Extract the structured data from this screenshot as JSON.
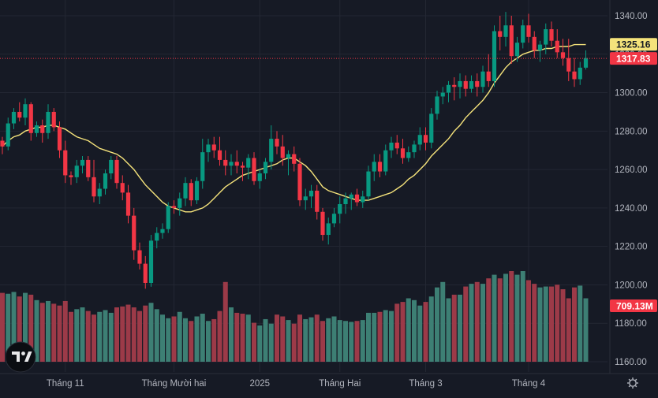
{
  "chart_data": {
    "type": "candlestick",
    "title": "",
    "price_axis": {
      "ticks": [
        1340,
        1320,
        1300,
        1280,
        1260,
        1240,
        1220,
        1200,
        1180,
        1160
      ],
      "tick_labels": [
        "1340.00",
        "1320.00",
        "1300.00",
        "1280.00",
        "1260.00",
        "1240.00",
        "1220.00",
        "1200.00",
        "1180.00",
        "1160.00"
      ],
      "range": [
        1155,
        1345
      ]
    },
    "time_axis": {
      "labels": [
        "Tháng 11",
        "Tháng Mười hai",
        "2025",
        "Tháng Hai",
        "Tháng 3",
        "Tháng 4"
      ],
      "label_indices": [
        11,
        30,
        45,
        59,
        74,
        92
      ]
    },
    "ma": {
      "label": "1325.16",
      "value": 1325.16,
      "color": "#f5e37b"
    },
    "last_price": {
      "label": "1317.83",
      "value": 1317.83,
      "color": "#f23645"
    },
    "volume": {
      "label": "709.13M",
      "value": 709.13,
      "color": "#f23645"
    },
    "colors": {
      "up": "#089981",
      "down": "#f23645",
      "up_vol": "#3d7f74",
      "down_vol": "#9c3a48",
      "background": "#161a25",
      "grid": "#232733",
      "text": "#b2b5be"
    },
    "candles": [
      [
        1275,
        1277,
        1268,
        1272
      ],
      [
        1272,
        1287,
        1270,
        1284
      ],
      [
        1284,
        1292,
        1281,
        1290
      ],
      [
        1290,
        1295,
        1285,
        1287
      ],
      [
        1287,
        1297,
        1283,
        1294
      ],
      [
        1294,
        1295,
        1275,
        1279
      ],
      [
        1279,
        1285,
        1277,
        1283
      ],
      [
        1283,
        1286,
        1274,
        1279
      ],
      [
        1279,
        1294,
        1276,
        1290
      ],
      [
        1290,
        1292,
        1280,
        1282
      ],
      [
        1282,
        1285,
        1266,
        1270
      ],
      [
        1270,
        1275,
        1253,
        1257
      ],
      [
        1257,
        1259,
        1252,
        1256
      ],
      [
        1256,
        1265,
        1253,
        1262
      ],
      [
        1262,
        1267,
        1258,
        1265
      ],
      [
        1265,
        1267,
        1254,
        1256
      ],
      [
        1256,
        1265,
        1243,
        1246
      ],
      [
        1246,
        1253,
        1242,
        1250
      ],
      [
        1250,
        1260,
        1247,
        1258
      ],
      [
        1258,
        1267,
        1255,
        1265
      ],
      [
        1265,
        1267,
        1250,
        1253
      ],
      [
        1253,
        1257,
        1244,
        1248
      ],
      [
        1248,
        1252,
        1232,
        1236
      ],
      [
        1236,
        1240,
        1213,
        1218
      ],
      [
        1218,
        1222,
        1208,
        1211
      ],
      [
        1211,
        1215,
        1198,
        1201
      ],
      [
        1201,
        1226,
        1199,
        1223
      ],
      [
        1223,
        1230,
        1219,
        1227
      ],
      [
        1227,
        1232,
        1224,
        1229
      ],
      [
        1229,
        1243,
        1227,
        1241
      ],
      [
        1241,
        1244,
        1237,
        1240
      ],
      [
        1240,
        1248,
        1236,
        1245
      ],
      [
        1245,
        1256,
        1241,
        1253
      ],
      [
        1253,
        1255,
        1241,
        1244
      ],
      [
        1244,
        1256,
        1242,
        1254
      ],
      [
        1254,
        1276,
        1250,
        1269
      ],
      [
        1269,
        1276,
        1264,
        1273
      ],
      [
        1273,
        1277,
        1266,
        1270
      ],
      [
        1270,
        1277,
        1262,
        1265
      ],
      [
        1265,
        1270,
        1257,
        1262
      ],
      [
        1262,
        1268,
        1257,
        1264
      ],
      [
        1264,
        1270,
        1258,
        1262
      ],
      [
        1262,
        1264,
        1254,
        1261
      ],
      [
        1261,
        1268,
        1255,
        1266
      ],
      [
        1266,
        1269,
        1252,
        1254
      ],
      [
        1254,
        1260,
        1250,
        1258
      ],
      [
        1258,
        1266,
        1255,
        1264
      ],
      [
        1264,
        1283,
        1260,
        1276
      ],
      [
        1276,
        1280,
        1268,
        1272
      ],
      [
        1272,
        1278,
        1262,
        1266
      ],
      [
        1266,
        1270,
        1257,
        1268
      ],
      [
        1268,
        1272,
        1259,
        1263
      ],
      [
        1263,
        1266,
        1241,
        1244
      ],
      [
        1244,
        1250,
        1239,
        1246
      ],
      [
        1246,
        1252,
        1240,
        1249
      ],
      [
        1249,
        1252,
        1234,
        1238
      ],
      [
        1238,
        1240,
        1223,
        1226
      ],
      [
        1226,
        1235,
        1221,
        1232
      ],
      [
        1232,
        1240,
        1230,
        1237
      ],
      [
        1237,
        1246,
        1232,
        1242
      ],
      [
        1242,
        1248,
        1237,
        1245
      ],
      [
        1245,
        1248,
        1239,
        1247
      ],
      [
        1247,
        1250,
        1241,
        1243
      ],
      [
        1243,
        1249,
        1240,
        1246
      ],
      [
        1246,
        1262,
        1244,
        1259
      ],
      [
        1259,
        1268,
        1254,
        1264
      ],
      [
        1264,
        1268,
        1256,
        1259
      ],
      [
        1259,
        1273,
        1257,
        1270
      ],
      [
        1270,
        1277,
        1266,
        1274
      ],
      [
        1274,
        1278,
        1268,
        1271
      ],
      [
        1271,
        1276,
        1263,
        1266
      ],
      [
        1266,
        1272,
        1264,
        1269
      ],
      [
        1269,
        1275,
        1266,
        1273
      ],
      [
        1273,
        1282,
        1270,
        1278
      ],
      [
        1278,
        1282,
        1270,
        1274
      ],
      [
        1274,
        1292,
        1271,
        1289
      ],
      [
        1289,
        1301,
        1286,
        1298
      ],
      [
        1298,
        1303,
        1294,
        1300
      ],
      [
        1300,
        1306,
        1295,
        1304
      ],
      [
        1304,
        1308,
        1296,
        1303
      ],
      [
        1303,
        1310,
        1297,
        1306
      ],
      [
        1306,
        1309,
        1298,
        1302
      ],
      [
        1302,
        1309,
        1300,
        1306
      ],
      [
        1306,
        1310,
        1298,
        1303
      ],
      [
        1303,
        1314,
        1300,
        1311
      ],
      [
        1311,
        1320,
        1303,
        1306
      ],
      [
        1306,
        1335,
        1303,
        1332
      ],
      [
        1332,
        1340,
        1322,
        1329
      ],
      [
        1329,
        1342,
        1324,
        1335
      ],
      [
        1335,
        1340,
        1315,
        1319
      ],
      [
        1319,
        1329,
        1316,
        1326
      ],
      [
        1326,
        1338,
        1323,
        1335
      ],
      [
        1335,
        1341,
        1326,
        1329
      ],
      [
        1329,
        1332,
        1318,
        1322
      ],
      [
        1322,
        1327,
        1316,
        1325
      ],
      [
        1325,
        1336,
        1320,
        1333
      ],
      [
        1333,
        1337,
        1324,
        1327
      ],
      [
        1327,
        1333,
        1318,
        1321
      ],
      [
        1321,
        1328,
        1314,
        1318
      ],
      [
        1318,
        1328,
        1306,
        1311
      ],
      [
        1311,
        1318,
        1303,
        1307
      ],
      [
        1307,
        1316,
        1304,
        1313
      ],
      [
        1313,
        1322,
        1312,
        1318
      ]
    ],
    "ma_values": [
      1272,
      1275,
      1277,
      1278,
      1280,
      1281,
      1282,
      1282,
      1283,
      1283,
      1282,
      1281,
      1279,
      1277,
      1276,
      1275,
      1273,
      1271,
      1270,
      1269,
      1268,
      1266,
      1263,
      1260,
      1256,
      1252,
      1249,
      1246,
      1243,
      1241,
      1240,
      1239,
      1238,
      1238,
      1239,
      1240,
      1242,
      1245,
      1248,
      1251,
      1253,
      1255,
      1257,
      1258,
      1259,
      1260,
      1261,
      1262,
      1263,
      1265,
      1266,
      1266,
      1264,
      1262,
      1259,
      1255,
      1251,
      1249,
      1248,
      1247,
      1246,
      1245,
      1244,
      1244,
      1244,
      1245,
      1246,
      1247,
      1248,
      1250,
      1252,
      1255,
      1257,
      1260,
      1263,
      1267,
      1270,
      1273,
      1276,
      1280,
      1283,
      1287,
      1290,
      1293,
      1296,
      1300,
      1305,
      1309,
      1313,
      1316,
      1318,
      1320,
      1321,
      1322,
      1322,
      1323,
      1323,
      1324,
      1324,
      1324,
      1325,
      1325,
      1325
    ],
    "volumes": [
      0.76,
      0.75,
      0.77,
      0.72,
      0.76,
      0.74,
      0.68,
      0.65,
      0.67,
      0.64,
      0.62,
      0.67,
      0.55,
      0.58,
      0.6,
      0.56,
      0.52,
      0.55,
      0.57,
      0.54,
      0.6,
      0.61,
      0.63,
      0.6,
      0.56,
      0.62,
      0.65,
      0.58,
      0.52,
      0.48,
      0.5,
      0.55,
      0.48,
      0.45,
      0.5,
      0.53,
      0.45,
      0.47,
      0.56,
      0.88,
      0.6,
      0.54,
      0.53,
      0.52,
      0.43,
      0.4,
      0.47,
      0.42,
      0.52,
      0.5,
      0.46,
      0.42,
      0.52,
      0.47,
      0.49,
      0.52,
      0.45,
      0.48,
      0.5,
      0.46,
      0.45,
      0.44,
      0.45,
      0.46,
      0.54,
      0.54,
      0.55,
      0.57,
      0.56,
      0.64,
      0.66,
      0.7,
      0.68,
      0.62,
      0.66,
      0.72,
      0.82,
      0.88,
      0.7,
      0.74,
      0.74,
      0.83,
      0.86,
      0.88,
      0.86,
      0.92,
      0.96,
      0.92,
      0.97,
      1.0,
      0.96,
      1.0,
      0.9,
      0.86,
      0.82,
      0.83,
      0.83,
      0.85,
      0.8,
      0.7,
      0.82,
      0.84,
      0.7
    ]
  }
}
